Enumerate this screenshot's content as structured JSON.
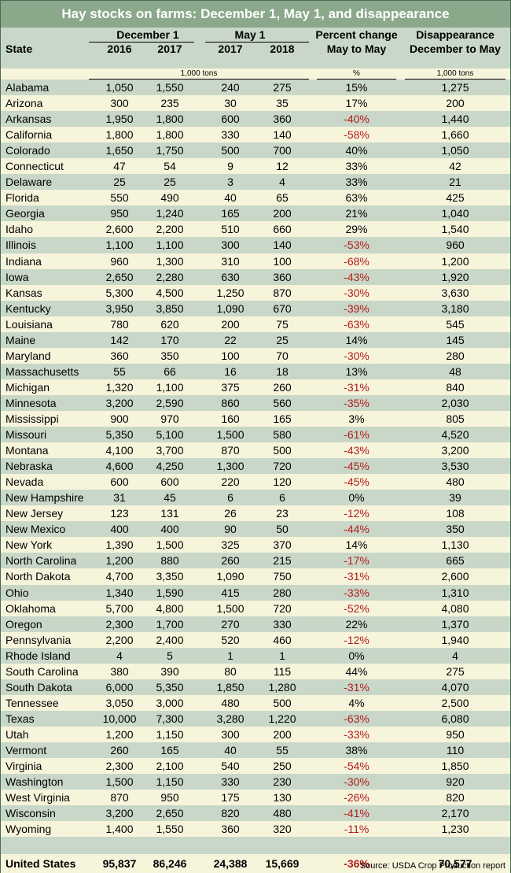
{
  "chart_data": {
    "type": "table",
    "title": "Hay stocks on farms: December 1, May 1, and disappearance",
    "group_headers": {
      "dec": "December 1",
      "may": "May 1",
      "pct_top": "Percent change",
      "pct_bottom": "May to May",
      "dis_top": "Disappearance",
      "dis_bottom": "December to May"
    },
    "col_headers": {
      "state": "State",
      "dec2016": "2016",
      "dec2017": "2017",
      "may2017": "2017",
      "may2018": "2018"
    },
    "units": {
      "stocks": "1,000 tons",
      "pct": "%",
      "dis": "1,000 tons"
    },
    "rows": [
      [
        "Alabama",
        "1,050",
        "1,550",
        "240",
        "275",
        "15%",
        "1,275"
      ],
      [
        "Arizona",
        "300",
        "235",
        "30",
        "35",
        "17%",
        "200"
      ],
      [
        "Arkansas",
        "1,950",
        "1,800",
        "600",
        "360",
        "-40%",
        "1,440"
      ],
      [
        "California",
        "1,800",
        "1,800",
        "330",
        "140",
        "-58%",
        "1,660"
      ],
      [
        "Colorado",
        "1,650",
        "1,750",
        "500",
        "700",
        "40%",
        "1,050"
      ],
      [
        "Connecticut",
        "47",
        "54",
        "9",
        "12",
        "33%",
        "42"
      ],
      [
        "Delaware",
        "25",
        "25",
        "3",
        "4",
        "33%",
        "21"
      ],
      [
        "Florida",
        "550",
        "490",
        "40",
        "65",
        "63%",
        "425"
      ],
      [
        "Georgia",
        "950",
        "1,240",
        "165",
        "200",
        "21%",
        "1,040"
      ],
      [
        "Idaho",
        "2,600",
        "2,200",
        "510",
        "660",
        "29%",
        "1,540"
      ],
      [
        "Illinois",
        "1,100",
        "1,100",
        "300",
        "140",
        "-53%",
        "960"
      ],
      [
        "Indiana",
        "960",
        "1,300",
        "310",
        "100",
        "-68%",
        "1,200"
      ],
      [
        "Iowa",
        "2,650",
        "2,280",
        "630",
        "360",
        "-43%",
        "1,920"
      ],
      [
        "Kansas",
        "5,300",
        "4,500",
        "1,250",
        "870",
        "-30%",
        "3,630"
      ],
      [
        "Kentucky",
        "3,950",
        "3,850",
        "1,090",
        "670",
        "-39%",
        "3,180"
      ],
      [
        "Louisiana",
        "780",
        "620",
        "200",
        "75",
        "-63%",
        "545"
      ],
      [
        "Maine",
        "142",
        "170",
        "22",
        "25",
        "14%",
        "145"
      ],
      [
        "Maryland",
        "360",
        "350",
        "100",
        "70",
        "-30%",
        "280"
      ],
      [
        "Massachusetts",
        "55",
        "66",
        "16",
        "18",
        "13%",
        "48"
      ],
      [
        "Michigan",
        "1,320",
        "1,100",
        "375",
        "260",
        "-31%",
        "840"
      ],
      [
        "Minnesota",
        "3,200",
        "2,590",
        "860",
        "560",
        "-35%",
        "2,030"
      ],
      [
        "Mississippi",
        "900",
        "970",
        "160",
        "165",
        "3%",
        "805"
      ],
      [
        "Missouri",
        "5,350",
        "5,100",
        "1,500",
        "580",
        "-61%",
        "4,520"
      ],
      [
        "Montana",
        "4,100",
        "3,700",
        "870",
        "500",
        "-43%",
        "3,200"
      ],
      [
        "Nebraska",
        "4,600",
        "4,250",
        "1,300",
        "720",
        "-45%",
        "3,530"
      ],
      [
        "Nevada",
        "600",
        "600",
        "220",
        "120",
        "-45%",
        "480"
      ],
      [
        "New Hampshire",
        "31",
        "45",
        "6",
        "6",
        "0%",
        "39"
      ],
      [
        "New Jersey",
        "123",
        "131",
        "26",
        "23",
        "-12%",
        "108"
      ],
      [
        "New Mexico",
        "400",
        "400",
        "90",
        "50",
        "-44%",
        "350"
      ],
      [
        "New York",
        "1,390",
        "1,500",
        "325",
        "370",
        "14%",
        "1,130"
      ],
      [
        "North Carolina",
        "1,200",
        "880",
        "260",
        "215",
        "-17%",
        "665"
      ],
      [
        "North Dakota",
        "4,700",
        "3,350",
        "1,090",
        "750",
        "-31%",
        "2,600"
      ],
      [
        "Ohio",
        "1,340",
        "1,590",
        "415",
        "280",
        "-33%",
        "1,310"
      ],
      [
        "Oklahoma",
        "5,700",
        "4,800",
        "1,500",
        "720",
        "-52%",
        "4,080"
      ],
      [
        "Oregon",
        "2,300",
        "1,700",
        "270",
        "330",
        "22%",
        "1,370"
      ],
      [
        "Pennsylvania",
        "2,200",
        "2,400",
        "520",
        "460",
        "-12%",
        "1,940"
      ],
      [
        "Rhode Island",
        "4",
        "5",
        "1",
        "1",
        "0%",
        "4"
      ],
      [
        "South Carolina",
        "380",
        "390",
        "80",
        "115",
        "44%",
        "275"
      ],
      [
        "South Dakota",
        "6,000",
        "5,350",
        "1,850",
        "1,280",
        "-31%",
        "4,070"
      ],
      [
        "Tennessee",
        "3,050",
        "3,000",
        "480",
        "500",
        "4%",
        "2,500"
      ],
      [
        "Texas",
        "10,000",
        "7,300",
        "3,280",
        "1,220",
        "-63%",
        "6,080"
      ],
      [
        "Utah",
        "1,200",
        "1,150",
        "300",
        "200",
        "-33%",
        "950"
      ],
      [
        "Vermont",
        "260",
        "165",
        "40",
        "55",
        "38%",
        "110"
      ],
      [
        "Virginia",
        "2,300",
        "2,100",
        "540",
        "250",
        "-54%",
        "1,850"
      ],
      [
        "Washington",
        "1,500",
        "1,150",
        "330",
        "230",
        "-30%",
        "920"
      ],
      [
        "West Virginia",
        "870",
        "950",
        "175",
        "130",
        "-26%",
        "820"
      ],
      [
        "Wisconsin",
        "3,200",
        "2,650",
        "820",
        "480",
        "-41%",
        "2,170"
      ],
      [
        "Wyoming",
        "1,400",
        "1,550",
        "360",
        "320",
        "-11%",
        "1,230"
      ]
    ],
    "total": [
      "United States",
      "95,837",
      "86,246",
      "24,388",
      "15,669",
      "-36%",
      "70,577"
    ],
    "source": "Source: USDA Crop Production report"
  },
  "colors": {
    "title_band": "#8ba88b",
    "header_band": "#c8d7c7",
    "stripe": "#c8d7c7",
    "base": "#f7f4dc",
    "negative": "#b31b1b"
  }
}
